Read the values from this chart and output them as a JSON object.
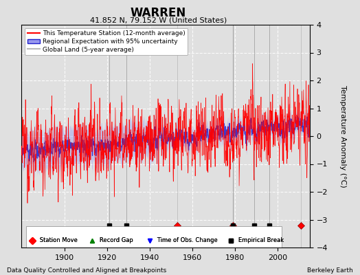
{
  "title": "WARREN",
  "subtitle": "41.852 N, 79.152 W (United States)",
  "xlabel_bottom": "Data Quality Controlled and Aligned at Breakpoints",
  "xlabel_right": "Berkeley Earth",
  "ylabel": "Temperature Anomaly (°C)",
  "xlim": [
    1880,
    2015
  ],
  "ylim": [
    -4,
    4
  ],
  "yticks": [
    -4,
    -3,
    -2,
    -1,
    0,
    1,
    2,
    3,
    4
  ],
  "xticks": [
    1900,
    1920,
    1940,
    1960,
    1980,
    2000
  ],
  "bg_color": "#e0e0e0",
  "plot_bg_color": "#e0e0e0",
  "grid_color": "#ffffff",
  "station_moves": [
    1953,
    1979,
    2011
  ],
  "empirical_breaks": [
    1921,
    1929,
    1979,
    1989,
    1996
  ],
  "obs_changes": [],
  "record_gaps": [],
  "red_line_color": "#ff0000",
  "blue_fill_color": "#9999ee",
  "blue_line_color": "#2222cc",
  "gray_line_color": "#bbbbbb",
  "seed": 12345,
  "marker_y": -3.2,
  "vline_color": "#888888"
}
